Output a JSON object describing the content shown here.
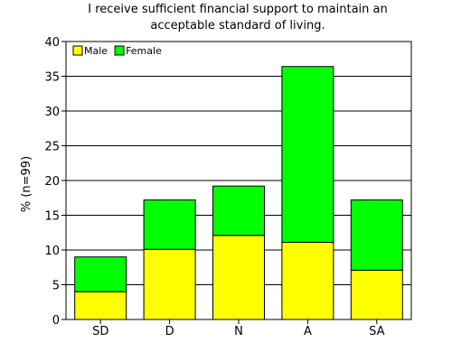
{
  "chart_data": {
    "type": "bar",
    "stacked": true,
    "title_lines": [
      "I receive sufficient financial support to maintain an",
      "acceptable standard of living."
    ],
    "ylabel": "% (n=99)",
    "xlabel": "",
    "categories": [
      "SD",
      "D",
      "N",
      "A",
      "SA"
    ],
    "series": [
      {
        "name": "Male",
        "color": "#ffff00",
        "values": [
          4,
          10.1,
          12.1,
          11.1,
          7.1
        ]
      },
      {
        "name": "Female",
        "color": "#00ff00",
        "values": [
          5,
          7.1,
          7.1,
          25.3,
          10.1
        ]
      }
    ],
    "ylim": [
      0,
      40
    ],
    "yticks": [
      0,
      5,
      10,
      15,
      20,
      25,
      30,
      35,
      40
    ],
    "grid": true,
    "legend": {
      "placement": "top-left",
      "orientation": "horizontal"
    }
  }
}
